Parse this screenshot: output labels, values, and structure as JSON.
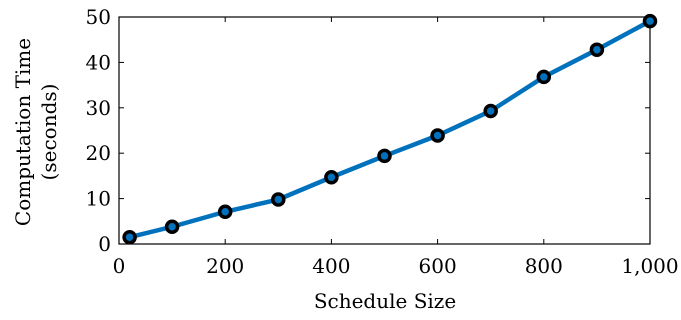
{
  "chart_data": {
    "type": "line",
    "xlabel": "Schedule Size",
    "ylabel": [
      "Computation Time",
      "(seconds)"
    ],
    "xlim": [
      0,
      1000
    ],
    "ylim": [
      0,
      50
    ],
    "xticks": [
      0,
      200,
      400,
      600,
      800,
      1000
    ],
    "xtick_labels": [
      "0",
      "200",
      "400",
      "600",
      "800",
      "1,000"
    ],
    "yticks": [
      0,
      10,
      20,
      30,
      40,
      50
    ],
    "ytick_labels": [
      "0",
      "10",
      "20",
      "30",
      "40",
      "50"
    ],
    "grid": false,
    "series": [
      {
        "color": "#0072bd",
        "marker_color": "#000000",
        "x": [
          20,
          100,
          200,
          300,
          400,
          500,
          600,
          700,
          800,
          900,
          1000
        ],
        "y": [
          1.5,
          3.8,
          7.1,
          9.8,
          14.7,
          19.4,
          23.9,
          29.3,
          36.8,
          42.8,
          49.1
        ]
      }
    ]
  }
}
